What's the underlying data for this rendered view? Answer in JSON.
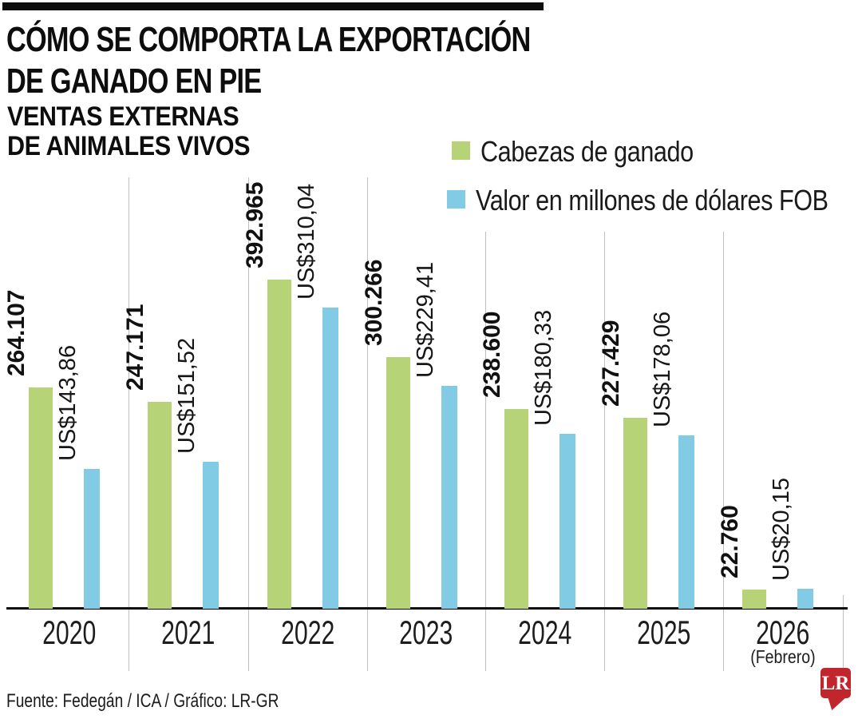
{
  "header": {
    "title_line1": "CÓMO SE COMPORTA LA EXPORTACIÓN",
    "title_line2": "DE GANADO EN PIE",
    "subtitle_line1": "VENTAS EXTERNAS",
    "subtitle_line2": "DE ANIMALES VIVOS"
  },
  "legend": {
    "items": [
      {
        "label": "Cabezas de ganado",
        "color": "#b7d378"
      },
      {
        "label": "Valor en millones de dólares FOB",
        "color": "#81cbe4"
      }
    ]
  },
  "chart_data": {
    "type": "bar",
    "title": "CÓMO SE COMPORTA LA EXPORTACIÓN DE GANADO EN PIE",
    "subtitle": "VENTAS EXTERNAS DE ANIMALES VIVOS",
    "categories": [
      "2020",
      "2021",
      "2022",
      "2023",
      "2024",
      "2025",
      "2026"
    ],
    "x_note": {
      "category": "2026",
      "label": "(Febrero)"
    },
    "series": [
      {
        "name": "Cabezas de ganado",
        "color": "#b7d378",
        "values": [
          264107,
          247171,
          392965,
          300266,
          238600,
          227429,
          22760
        ],
        "labels": [
          "264.107",
          "247.171",
          "392.965",
          "300.266",
          "238.600",
          "227.429",
          "22.760"
        ]
      },
      {
        "name": "Valor en millones de dólares FOB",
        "color": "#81cbe4",
        "values": [
          143.86,
          151.52,
          310.04,
          229.41,
          180.33,
          178.06,
          20.15
        ],
        "labels": [
          "US$143,86",
          "US$151,52",
          "US$310,04",
          "US$229,41",
          "US$180,33",
          "US$178,06",
          "US$20,15"
        ]
      }
    ],
    "value_labels": "rotated-90-above-bars",
    "legend_position": "top-right",
    "grid": "vertical-category-separators",
    "axes": {
      "x_baseline": true,
      "y_axis_ticks": "none"
    }
  },
  "footer": {
    "source": "Fuente: Fedegán / ICA / Gráfico: LR-GR"
  },
  "logo": {
    "text": "LR",
    "color": "#c1262d"
  }
}
